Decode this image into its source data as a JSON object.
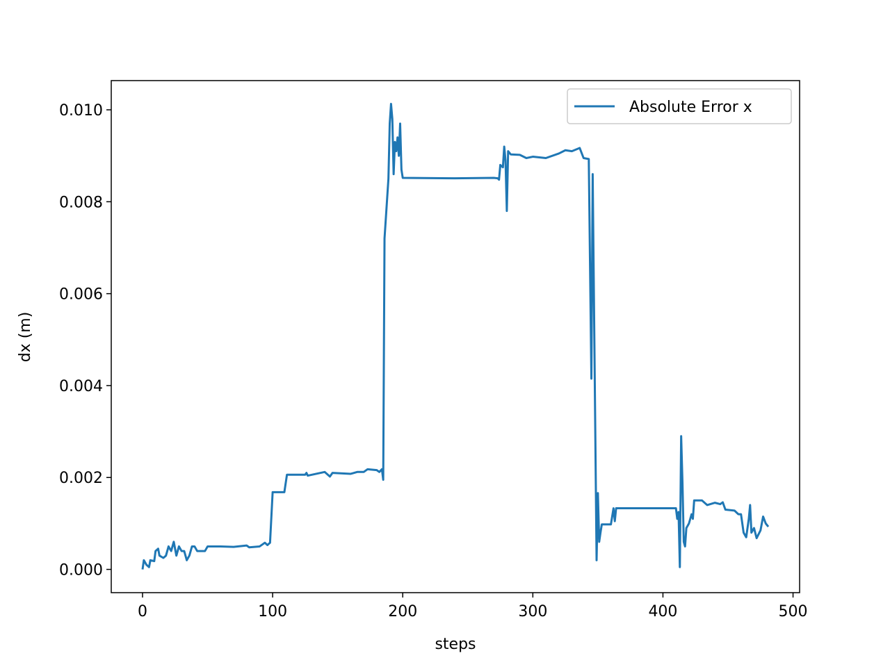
{
  "chart_data": {
    "type": "line",
    "xlabel": "steps",
    "ylabel": "dx (m)",
    "xlim": [
      -24.05,
      505.05
    ],
    "ylim": [
      -0.000506,
      0.010636
    ],
    "xticks": [
      0,
      100,
      200,
      300,
      400,
      500
    ],
    "yticks": [
      {
        "value": 0,
        "label": "0.000"
      },
      {
        "value": 0.002,
        "label": "0.002"
      },
      {
        "value": 0.004,
        "label": "0.004"
      },
      {
        "value": 0.006,
        "label": "0.006"
      },
      {
        "value": 0.008,
        "label": "0.008"
      },
      {
        "value": 0.01,
        "label": "0.010"
      }
    ],
    "legend": "upper right",
    "x": [
      0,
      1,
      3,
      5,
      6,
      9,
      10,
      12,
      13,
      16,
      18,
      20,
      22,
      24,
      26,
      28,
      30,
      32,
      34,
      36,
      38,
      40,
      42,
      48,
      50,
      60,
      70,
      80,
      82,
      90,
      94,
      96,
      98,
      100,
      109,
      111,
      125,
      126,
      127,
      140,
      144,
      146,
      160,
      165,
      170,
      173,
      180,
      182,
      184,
      185,
      186,
      189,
      190,
      191,
      192,
      193,
      194,
      195,
      196,
      197,
      198,
      199,
      200,
      240,
      270,
      273,
      274,
      275,
      277,
      278,
      279,
      280,
      281,
      283,
      290,
      295,
      300,
      310,
      320,
      325,
      330,
      336,
      339,
      343,
      345,
      346,
      349,
      350,
      351,
      352,
      353,
      360,
      362,
      363,
      364,
      380,
      400,
      410,
      411,
      412,
      413,
      414,
      415,
      416,
      417,
      418,
      420,
      422,
      423,
      424,
      430,
      434,
      440,
      444,
      446,
      448,
      455,
      458,
      460,
      462,
      464,
      466,
      467,
      468,
      470,
      472,
      475,
      477,
      479,
      481
    ],
    "series": [
      {
        "name": "Absolute Error x",
        "color": "#1f77b4",
        "values": [
          0.0,
          0.0002,
          0.0001,
          5e-05,
          0.0002,
          0.00018,
          0.0004,
          0.00045,
          0.0003,
          0.00025,
          0.0003,
          0.0005,
          0.0004,
          0.0006,
          0.0003,
          0.0005,
          0.0004,
          0.0004,
          0.0002,
          0.0003,
          0.0005,
          0.0005,
          0.0004,
          0.0004,
          0.0005,
          0.0005,
          0.00049,
          0.00052,
          0.00048,
          0.0005,
          0.00058,
          0.00053,
          0.00058,
          0.00168,
          0.00168,
          0.00206,
          0.00206,
          0.0021,
          0.00204,
          0.00212,
          0.00202,
          0.0021,
          0.00208,
          0.00212,
          0.00212,
          0.00218,
          0.00216,
          0.00212,
          0.00218,
          0.00195,
          0.0072,
          0.0085,
          0.0097,
          0.01013,
          0.0098,
          0.0086,
          0.0093,
          0.0091,
          0.0094,
          0.009,
          0.0097,
          0.0087,
          0.00852,
          0.00851,
          0.00852,
          0.00851,
          0.00848,
          0.0088,
          0.00875,
          0.0092,
          0.0089,
          0.0078,
          0.0091,
          0.00903,
          0.00902,
          0.00895,
          0.00898,
          0.00895,
          0.00905,
          0.00912,
          0.0091,
          0.00917,
          0.00895,
          0.00893,
          0.00415,
          0.0086,
          0.0002,
          0.00166,
          0.0006,
          0.0008,
          0.00098,
          0.00098,
          0.00133,
          0.00105,
          0.00133,
          0.00133,
          0.00133,
          0.00133,
          0.0011,
          0.00125,
          5e-05,
          0.0029,
          0.0019,
          0.0006,
          0.0005,
          0.0009,
          0.001,
          0.0012,
          0.0011,
          0.0015,
          0.0015,
          0.0014,
          0.00145,
          0.00142,
          0.00146,
          0.0013,
          0.00128,
          0.0012,
          0.0012,
          0.0008,
          0.0007,
          0.0011,
          0.0014,
          0.0008,
          0.0009,
          0.00068,
          0.00085,
          0.00115,
          0.001,
          0.00093
        ]
      }
    ]
  }
}
